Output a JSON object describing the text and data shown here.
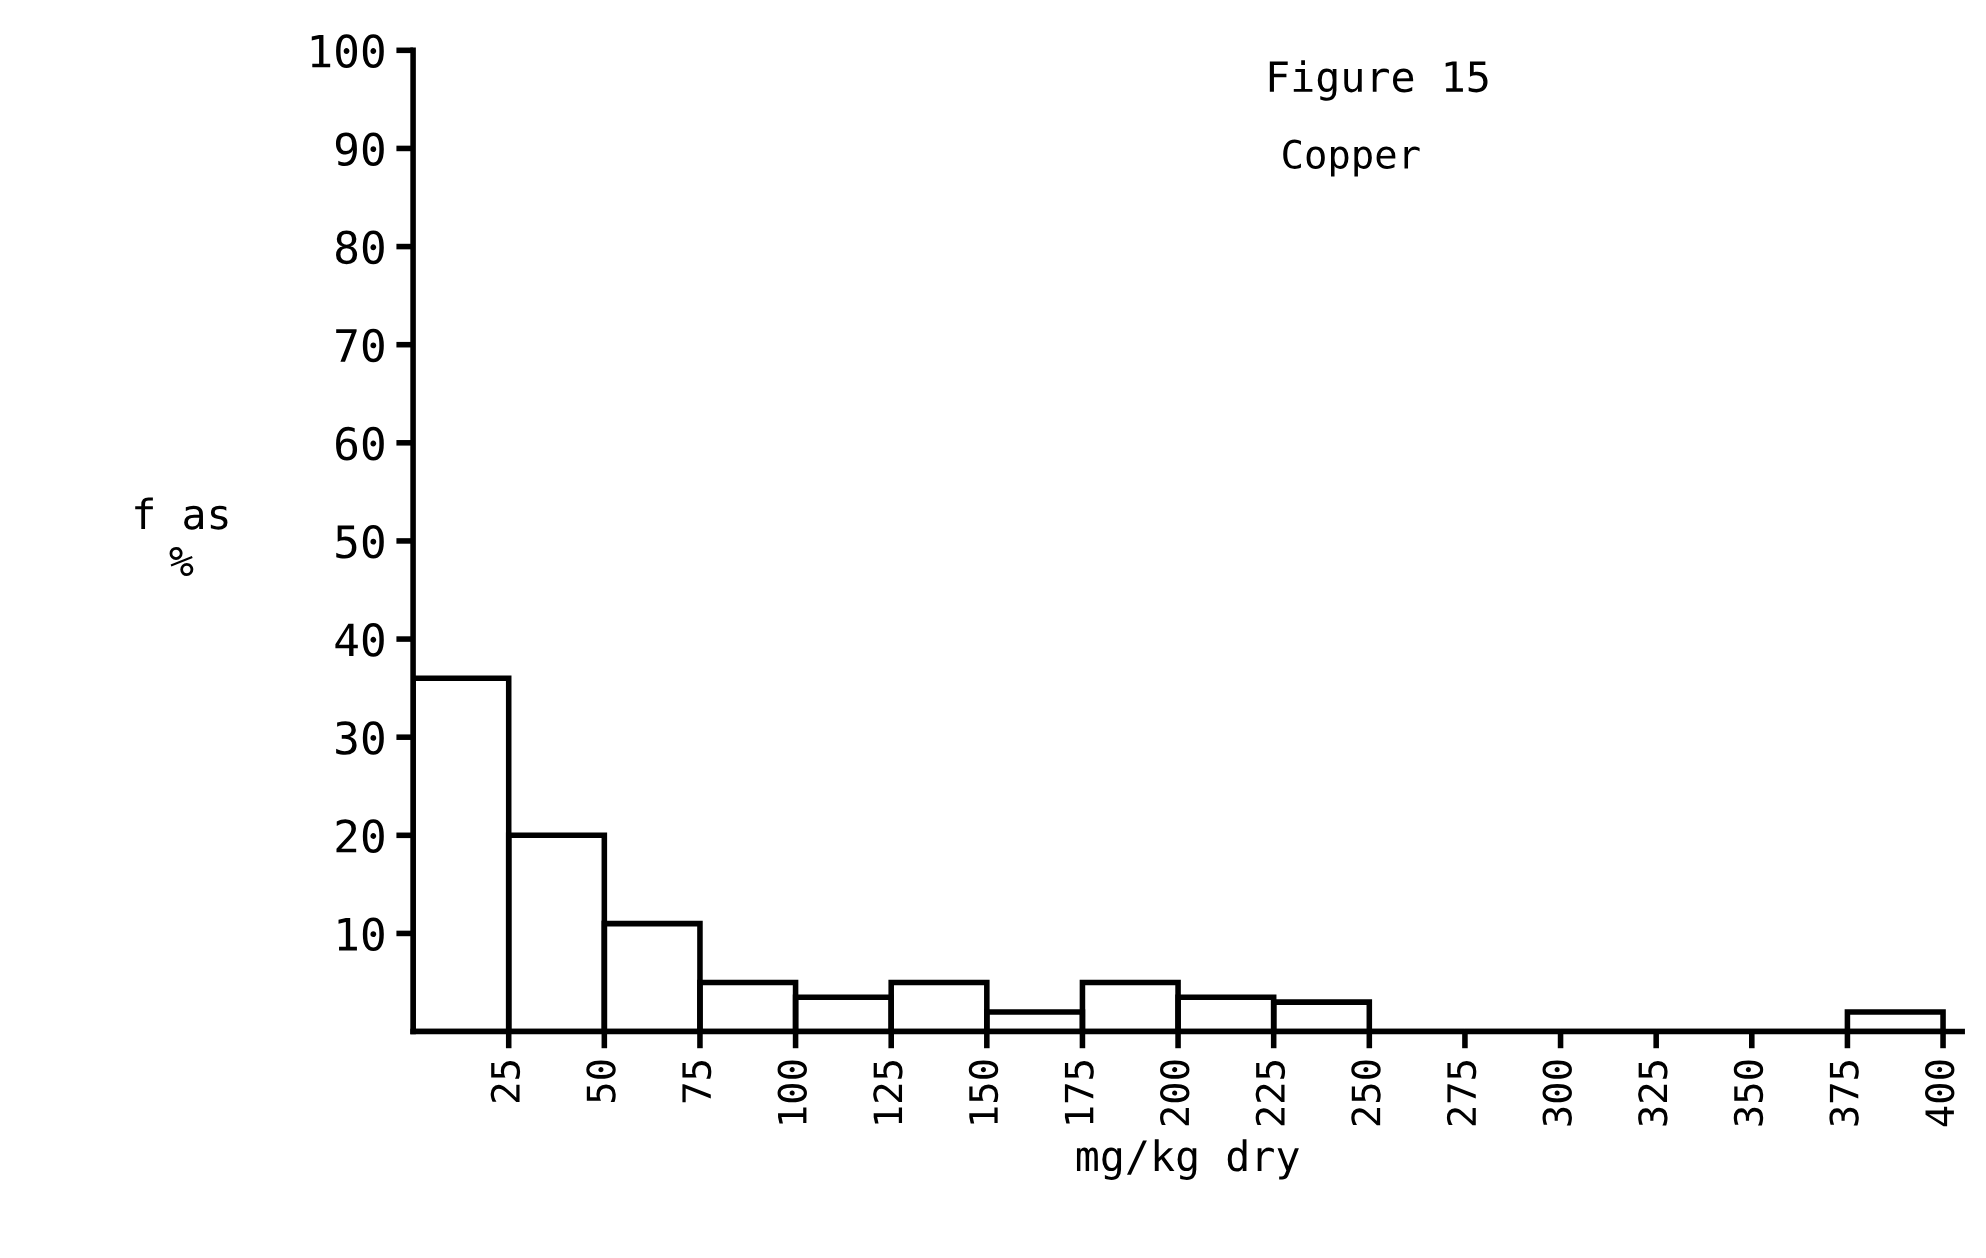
{
  "chart_data": {
    "type": "histogram",
    "title": "Figure 15",
    "subtitle": "Copper",
    "xlabel": "mg/kg dry",
    "ylabel": "f as\n%",
    "bins": [
      0,
      25,
      50,
      75,
      100,
      125,
      150,
      175,
      200,
      225,
      250,
      275,
      300,
      325,
      350,
      375,
      400
    ],
    "values": [
      36,
      20,
      11,
      5,
      3.5,
      5,
      2,
      5,
      3.5,
      3,
      0,
      0,
      0,
      0,
      0,
      2
    ],
    "color": "#000000",
    "xlim": [
      0,
      405
    ],
    "xticks": [
      25,
      50,
      75,
      100,
      125,
      150,
      175,
      200,
      225,
      250,
      275,
      300,
      325,
      350,
      375,
      400
    ],
    "ylim": [
      0,
      100
    ],
    "yticks": [
      10,
      20,
      30,
      40,
      50,
      60,
      70,
      80,
      90,
      100
    ],
    "grid": false,
    "legend": false
  }
}
